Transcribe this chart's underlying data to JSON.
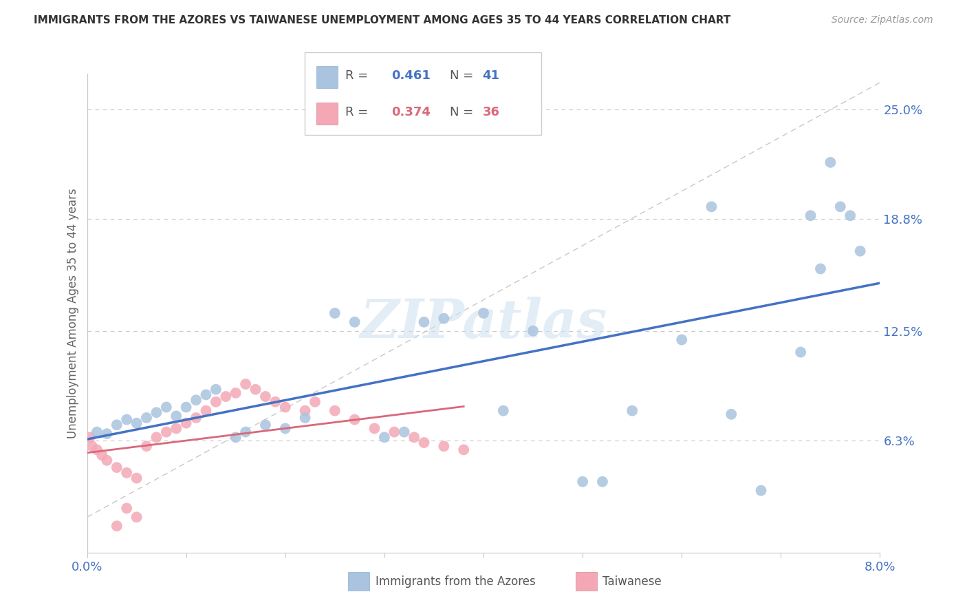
{
  "title": "IMMIGRANTS FROM THE AZORES VS TAIWANESE UNEMPLOYMENT AMONG AGES 35 TO 44 YEARS CORRELATION CHART",
  "source": "Source: ZipAtlas.com",
  "ylabel": "Unemployment Among Ages 35 to 44 years",
  "watermark": "ZIPatlas",
  "azores_R": 0.461,
  "azores_N": 41,
  "taiwanese_R": 0.374,
  "taiwanese_N": 36,
  "azores_color": "#aac4df",
  "azores_line_color": "#4472c4",
  "taiwanese_color": "#f4a8b5",
  "taiwanese_line_color": "#d9687a",
  "dashed_line_color": "#c8c8c8",
  "xlim": [
    0.0,
    0.08
  ],
  "ylim": [
    0.0,
    0.27
  ],
  "ytick_values": [
    0.063,
    0.125,
    0.188,
    0.25
  ],
  "ytick_labels": [
    "6.3%",
    "12.5%",
    "18.8%",
    "25.0%"
  ],
  "azores_x": [
    0.0005,
    0.001,
    0.0015,
    0.002,
    0.0025,
    0.003,
    0.004,
    0.005,
    0.006,
    0.007,
    0.008,
    0.009,
    0.01,
    0.011,
    0.012,
    0.013,
    0.014,
    0.015,
    0.016,
    0.017,
    0.019,
    0.021,
    0.025,
    0.028,
    0.03,
    0.031,
    0.034,
    0.036,
    0.04,
    0.043,
    0.046,
    0.05,
    0.052,
    0.056,
    0.063,
    0.065,
    0.068,
    0.072,
    0.073,
    0.074,
    0.076
  ],
  "azores_y": [
    0.068,
    0.067,
    0.065,
    0.071,
    0.069,
    0.073,
    0.075,
    0.072,
    0.076,
    0.079,
    0.083,
    0.077,
    0.082,
    0.085,
    0.088,
    0.09,
    0.092,
    0.065,
    0.068,
    0.07,
    0.073,
    0.076,
    0.135,
    0.13,
    0.065,
    0.068,
    0.13,
    0.132,
    0.135,
    0.08,
    0.125,
    0.04,
    0.04,
    0.08,
    0.12,
    0.195,
    0.078,
    0.035,
    0.11,
    0.19,
    0.16
  ],
  "taiwanese_x": [
    0.0005,
    0.001,
    0.0015,
    0.002,
    0.0025,
    0.003,
    0.004,
    0.005,
    0.006,
    0.007,
    0.008,
    0.009,
    0.01,
    0.011,
    0.012,
    0.013,
    0.014,
    0.015,
    0.016,
    0.017,
    0.018,
    0.019,
    0.02,
    0.021,
    0.023,
    0.025,
    0.027,
    0.029,
    0.031,
    0.033,
    0.034,
    0.035,
    0.038,
    0.04,
    0.001,
    0.0008
  ],
  "taiwanese_y": [
    0.065,
    0.06,
    0.058,
    0.057,
    0.055,
    0.05,
    0.048,
    0.045,
    0.062,
    0.065,
    0.07,
    0.068,
    0.072,
    0.075,
    0.078,
    0.082,
    0.085,
    0.09,
    0.095,
    0.092,
    0.088,
    0.085,
    0.082,
    0.08,
    0.09,
    0.085,
    0.08,
    0.075,
    0.07,
    0.068,
    0.065,
    0.063,
    0.06,
    0.058,
    0.02,
    0.015
  ]
}
